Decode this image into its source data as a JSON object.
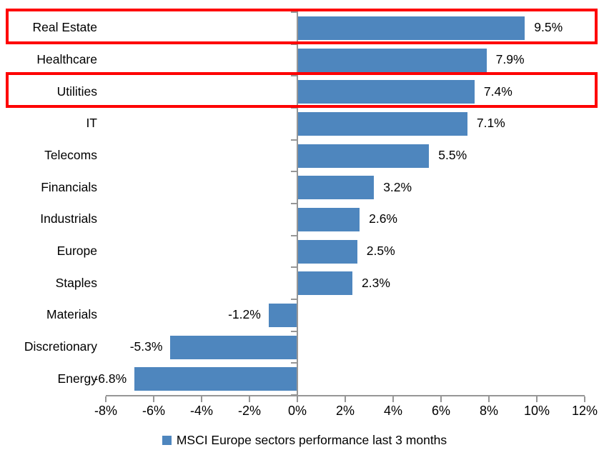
{
  "chart_data": {
    "type": "bar",
    "orientation": "horizontal",
    "title": "",
    "categories": [
      "Real Estate",
      "Healthcare",
      "Utilities",
      "IT",
      "Telecoms",
      "Financials",
      "Industrials",
      "Europe",
      "Staples",
      "Materials",
      "Discretionary",
      "Energy"
    ],
    "values": [
      9.5,
      7.9,
      7.4,
      7.1,
      5.5,
      3.2,
      2.6,
      2.5,
      2.3,
      -1.2,
      -5.3,
      -6.8
    ],
    "value_labels": [
      "9.5%",
      "7.9%",
      "7.4%",
      "7.1%",
      "5.5%",
      "3.2%",
      "2.6%",
      "2.5%",
      "2.3%",
      "-1.2%",
      "-5.3%",
      "-6.8%"
    ],
    "x_tick_values": [
      -8,
      -6,
      -4,
      -2,
      0,
      2,
      4,
      6,
      8,
      10,
      12
    ],
    "x_tick_labels": [
      "-8%",
      "-6%",
      "-4%",
      "-2%",
      "0%",
      "2%",
      "4%",
      "6%",
      "8%",
      "10%",
      "12%"
    ],
    "xlim": [
      -8,
      12
    ],
    "grid": false,
    "legend_position": "bottom",
    "legend_label": "MSCI Europe sectors performance last 3 months",
    "bar_color": "#4e86be",
    "axis_color": "#969696",
    "highlight_box_color": "#fe0000",
    "highlighted_categories": [
      "Real Estate",
      "Utilities"
    ]
  }
}
